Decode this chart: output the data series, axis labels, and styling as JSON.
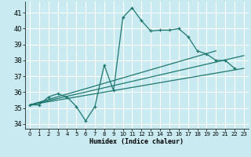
{
  "background_color": "#c8eaf0",
  "grid_color": "#b0d8e0",
  "line_color": "#1e7870",
  "xlabel": "Humidex (Indice chaleur)",
  "xlim": [
    -0.5,
    23.5
  ],
  "ylim": [
    33.7,
    41.7
  ],
  "yticks": [
    34,
    35,
    36,
    37,
    38,
    39,
    40,
    41
  ],
  "xticks": [
    0,
    1,
    2,
    3,
    4,
    5,
    6,
    7,
    8,
    9,
    10,
    11,
    12,
    13,
    14,
    15,
    16,
    17,
    18,
    19,
    20,
    21,
    22,
    23
  ],
  "curve_x": [
    0,
    1,
    2,
    3,
    4,
    5,
    6,
    7,
    8,
    9,
    10,
    11,
    12,
    13,
    14,
    15,
    16,
    17,
    18,
    19,
    20,
    21,
    22
  ],
  "curve_y": [
    35.2,
    35.2,
    35.7,
    35.9,
    35.7,
    35.1,
    34.2,
    35.1,
    37.7,
    36.1,
    40.7,
    41.3,
    40.5,
    39.85,
    39.9,
    39.9,
    40.0,
    39.5,
    38.6,
    38.4,
    38.0,
    38.0,
    37.5
  ],
  "tline1_x": [
    0,
    23
  ],
  "tline1_y": [
    35.2,
    37.5
  ],
  "tline2_x": [
    0,
    23
  ],
  "tline2_y": [
    35.2,
    38.3
  ],
  "tline3_x": [
    0,
    20
  ],
  "tline3_y": [
    35.2,
    38.6
  ]
}
